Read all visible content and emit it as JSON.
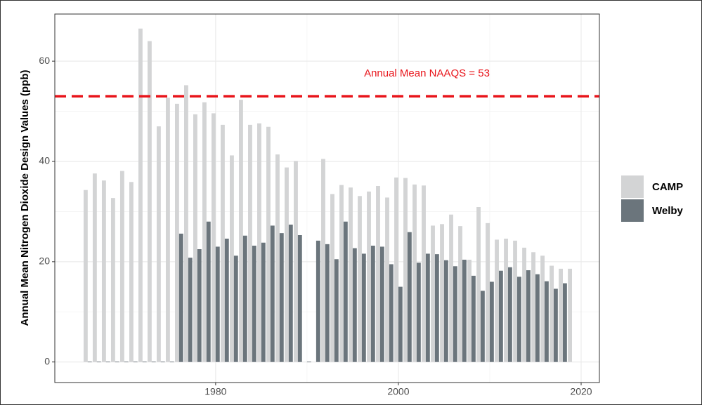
{
  "chart_data": {
    "type": "bar",
    "y_label": "Annual Mean Nitrogen Dioxide Design Values (ppb)",
    "x": [
      1966,
      1967,
      1968,
      1969,
      1970,
      1971,
      1972,
      1973,
      1974,
      1975,
      1976,
      1977,
      1978,
      1979,
      1980,
      1981,
      1982,
      1983,
      1984,
      1985,
      1986,
      1987,
      1988,
      1989,
      1990,
      1991,
      1992,
      1993,
      1994,
      1995,
      1996,
      1997,
      1998,
      1999,
      2000,
      2001,
      2002,
      2003,
      2004,
      2005,
      2006,
      2007,
      2008,
      2009,
      2010,
      2011,
      2012,
      2013,
      2014,
      2015,
      2016,
      2017,
      2018,
      2019
    ],
    "series": [
      {
        "name": "CAMP",
        "color": "#d3d4d5",
        "values": [
          34.3,
          37.6,
          36.2,
          32.7,
          38.1,
          35.9,
          66.5,
          64.0,
          47.0,
          52.7,
          51.5,
          55.2,
          49.4,
          51.8,
          49.6,
          47.3,
          41.2,
          52.3,
          47.3,
          47.6,
          46.9,
          41.4,
          38.8,
          40.1,
          null,
          null,
          40.5,
          33.5,
          35.3,
          34.8,
          33.1,
          34.0,
          35.1,
          32.8,
          36.8,
          36.7,
          35.4,
          35.2,
          27.2,
          27.5,
          29.4,
          27.1,
          20.4,
          30.9,
          27.7,
          24.4,
          24.6,
          24.2,
          22.8,
          21.9,
          21.2,
          19.2,
          18.6,
          18.6
        ]
      },
      {
        "name": "Welby",
        "color": "#6b757c",
        "values": [
          0,
          0,
          0,
          0,
          0,
          0,
          0,
          0,
          0,
          0,
          25.6,
          20.8,
          22.5,
          28.0,
          23.0,
          24.6,
          21.2,
          25.2,
          23.2,
          23.8,
          27.2,
          25.7,
          27.4,
          25.3,
          0,
          24.2,
          23.5,
          20.5,
          28.0,
          22.7,
          21.6,
          23.2,
          23.0,
          19.5,
          15.0,
          25.9,
          19.8,
          21.6,
          21.5,
          20.3,
          19.1,
          20.4,
          17.2,
          14.2,
          16.0,
          18.2,
          18.9,
          17.0,
          18.3,
          17.5,
          16.1,
          14.6,
          15.7,
          null
        ]
      }
    ],
    "xlim": [
      1962.4,
      2022
    ],
    "xticks": [
      1980,
      2000,
      2020
    ],
    "ylim": [
      -4.1,
      69.4
    ],
    "yticks": [
      0,
      20,
      40,
      60
    ],
    "grid": true,
    "legend": "right",
    "hline": {
      "value": 53,
      "color": "#e8141a",
      "label": "Annual Mean NAAQS = 53"
    }
  }
}
